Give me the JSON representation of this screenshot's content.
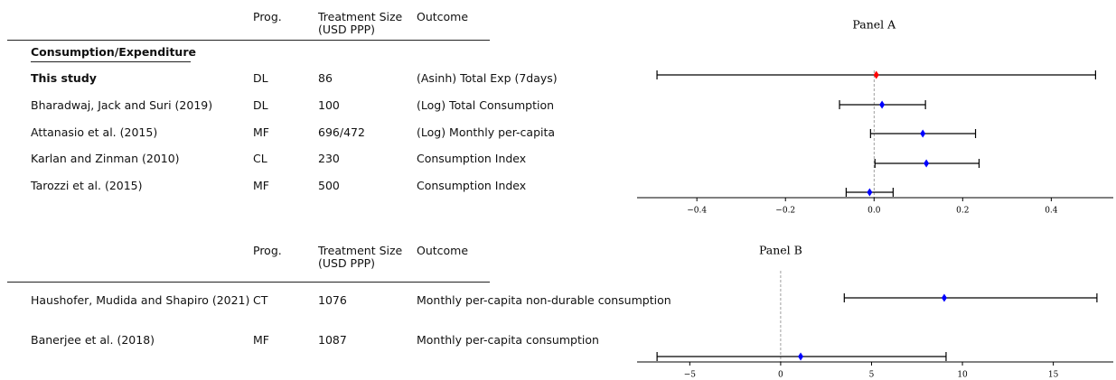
{
  "tables": [
    {
      "columns": [
        "Prog.",
        "Treatment Size\n(USD PPP)",
        "Outcome"
      ],
      "section": "Consumption/Expenditure",
      "rows": [
        [
          "This study",
          "DL",
          "86",
          "(Asinh) Total Exp (7days)"
        ],
        [
          "Bharadwaj, Jack and Suri (2019)",
          "DL",
          "100",
          "(Log) Total Consumption"
        ],
        [
          "Attanasio et al. (2015)",
          "MF",
          "696/472",
          "(Log) Monthly per-capita"
        ],
        [
          "Karlan and Zinman (2010)",
          "CL",
          "230",
          "Consumption Index"
        ],
        [
          "Tarozzi et al. (2015)",
          "MF",
          "500",
          "Consumption Index"
        ]
      ]
    },
    {
      "columns": [
        "Prog.",
        "Treatment Size\n(USD PPP)",
        "Outcome"
      ],
      "rows": [
        [
          "Haushofer, Mudida and Shapiro (2021)",
          "CT",
          "1076",
          "Monthly per-capita non-durable consumption"
        ],
        [
          "Banerjee et al. (2018)",
          "MF",
          "1087",
          "Monthly per-capita consumption"
        ]
      ]
    }
  ],
  "chart_data": [
    {
      "type": "forest",
      "title": "Panel A",
      "values": [
        0.005,
        0.018,
        0.11,
        0.118,
        -0.01
      ],
      "lower": [
        -0.49,
        -0.078,
        -0.008,
        0.002,
        -0.063
      ],
      "upper": [
        0.5,
        0.116,
        0.229,
        0.237,
        0.043
      ],
      "colors": [
        "#ff0000",
        "#0000ff",
        "#0000ff",
        "#0000ff",
        "#0000ff"
      ],
      "xlim": [
        -0.535,
        0.54
      ],
      "xticks": [
        {
          "value": -0.4,
          "label": "−0.4"
        },
        {
          "value": -0.2,
          "label": "−0.2"
        },
        {
          "value": 0,
          "label": "0.0"
        },
        {
          "value": 0.2,
          "label": "0.2"
        },
        {
          "value": 0.4,
          "label": "0.4"
        }
      ]
    },
    {
      "type": "forest",
      "title": "Panel B",
      "values": [
        9.0,
        1.1
      ],
      "lower": [
        3.5,
        -6.8
      ],
      "upper": [
        17.4,
        9.1
      ],
      "colors": [
        "#0000ff",
        "#0000ff"
      ],
      "xlim": [
        -7.9,
        18.3
      ],
      "xticks": [
        {
          "value": -5,
          "label": "−5"
        },
        0,
        5,
        10,
        15
      ]
    }
  ]
}
